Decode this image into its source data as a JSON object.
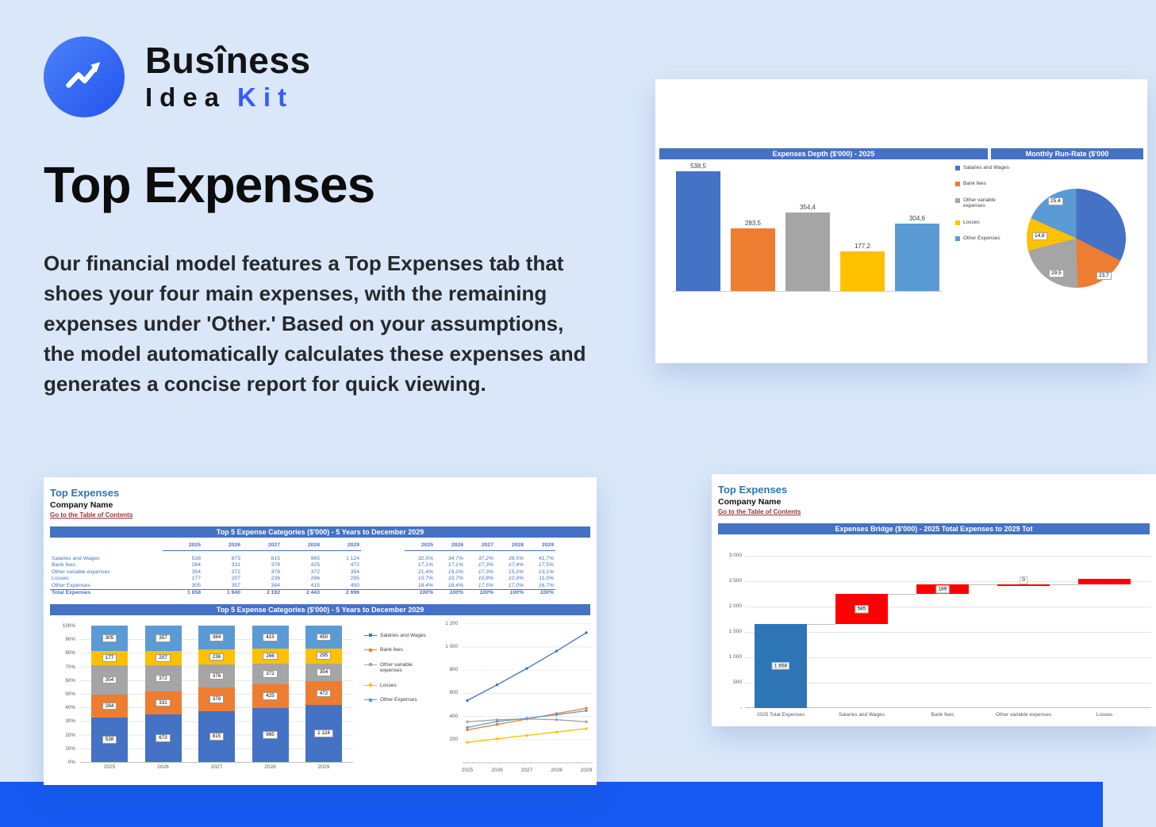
{
  "page": {
    "background": "#d9e7f9",
    "band_color": "#1659f0"
  },
  "logo": {
    "name": "Busîness",
    "sub_word": "Idea",
    "sub_accent": "Kit"
  },
  "hero": {
    "title": "Top Expenses",
    "paragraph": "Our financial model features a Top Expenses tab that shoes your four main expenses, with the remaining expenses under 'Other.' Based on your assumptions, the model automatically calculates these expenses and generates a concise report for quick viewing."
  },
  "colors": {
    "excel_header": "#4472c4",
    "series_palette": [
      "#4472c4",
      "#ed7d31",
      "#a5a5a5",
      "#ffc000",
      "#5b9bd5"
    ],
    "waterfall_total": "#2e75b6",
    "waterfall_delta": "#ff0000",
    "sheet_title_blue": "#2e75b6",
    "toc_link_red": "#943634",
    "table_text_blue": "#4472c4"
  },
  "categories": [
    "Salaries and Wages",
    "Bank fees",
    "Other variable expenses",
    "Losses",
    "Other Expenses"
  ],
  "sheet1": {
    "title": "Top Expenses",
    "company": "Company Name",
    "toc_link": "Go to the Table of Contents",
    "table_header": "Top 5 Expense Categories ($'000) - 5 Years to December 2029",
    "years": [
      "2025",
      "2026",
      "2027",
      "2028",
      "2029"
    ],
    "rows": [
      {
        "label": "Salaries and Wages",
        "values": [
          "538",
          "673",
          "815",
          "965",
          "1 124"
        ],
        "pcts": [
          "32,5%",
          "34,7%",
          "37,2%",
          "39,5%",
          "41,7%"
        ]
      },
      {
        "label": "Bank fees",
        "values": [
          "284",
          "331",
          "378",
          "425",
          "472"
        ],
        "pcts": [
          "17,1%",
          "17,1%",
          "17,3%",
          "17,4%",
          "17,5%"
        ]
      },
      {
        "label": "Other variable expenses",
        "values": [
          "354",
          "372",
          "378",
          "372",
          "354"
        ],
        "pcts": [
          "21,4%",
          "19,2%",
          "17,3%",
          "15,2%",
          "13,1%"
        ]
      },
      {
        "label": "Losses",
        "values": [
          "177",
          "207",
          "236",
          "266",
          "295"
        ],
        "pcts": [
          "10,7%",
          "10,7%",
          "10,8%",
          "10,9%",
          "11,0%"
        ]
      },
      {
        "label": "Other Expenses",
        "values": [
          "305",
          "357",
          "384",
          "415",
          "450"
        ],
        "pcts": [
          "18,4%",
          "18,4%",
          "17,5%",
          "17,0%",
          "16,7%"
        ]
      }
    ],
    "total_row": {
      "label": "Total Expenses",
      "values": [
        "1 658",
        "1 940",
        "2 192",
        "2 443",
        "2 696"
      ],
      "pcts": [
        "100%",
        "100%",
        "100%",
        "100%",
        "100%"
      ]
    }
  },
  "sheet2": {
    "title": "Top Expenses",
    "company": "Company Name",
    "toc_link": "Go to the Table of Contents"
  },
  "chart_data": [
    {
      "id": "expenses_depth",
      "type": "bar",
      "title": "Expenses Depth ($'000) - 2025",
      "categories": [
        "Salaries and Wages",
        "Bank fees",
        "Other variable expenses",
        "Losses",
        "Other Expenses"
      ],
      "values": [
        538.5,
        283.5,
        354.4,
        177.2,
        304.6
      ],
      "value_labels": [
        "538,5",
        "283,5",
        "354,4",
        "177,2",
        "304,6"
      ],
      "legend_position": "right"
    },
    {
      "id": "monthly_run_rate",
      "type": "pie",
      "title": "Monthly Run-Rate ($'000",
      "categories": [
        "Salaries and Wages",
        "Bank fees",
        "Other variable expenses",
        "Losses",
        "Other Expenses"
      ],
      "values": [
        44.9,
        23.7,
        29.5,
        14.8,
        25.4
      ],
      "visible_labels": [
        "25,4",
        "14,8",
        "29,5",
        "23,7"
      ]
    },
    {
      "id": "top5_stacked",
      "type": "bar",
      "subtype": "stacked-100",
      "title": "Top 5 Expense Categories ($'000) - 5 Years to December 2029",
      "categories": [
        "2025",
        "2026",
        "2027",
        "2028",
        "2029"
      ],
      "series": [
        {
          "name": "Salaries and Wages",
          "values": [
            538,
            673,
            815,
            965,
            1124
          ]
        },
        {
          "name": "Bank fees",
          "values": [
            284,
            331,
            378,
            425,
            472
          ]
        },
        {
          "name": "Other variable expenses",
          "values": [
            354,
            372,
            378,
            372,
            354
          ]
        },
        {
          "name": "Losses",
          "values": [
            177,
            207,
            236,
            266,
            295
          ]
        },
        {
          "name": "Other Expenses",
          "values": [
            305,
            357,
            384,
            415,
            450
          ]
        }
      ],
      "y_ticks": [
        "100%",
        "90%",
        "80%",
        "70%",
        "60%",
        "50%",
        "40%",
        "30%",
        "20%",
        "10%",
        "0%"
      ]
    },
    {
      "id": "top5_lines",
      "type": "line",
      "x": [
        "2025",
        "2026",
        "2027",
        "2028",
        "2029"
      ],
      "series": [
        {
          "name": "Salaries and Wages",
          "values": [
            538,
            673,
            815,
            965,
            1124
          ]
        },
        {
          "name": "Bank fees",
          "values": [
            284,
            331,
            378,
            425,
            472
          ]
        },
        {
          "name": "Other variable expenses",
          "values": [
            354,
            372,
            378,
            372,
            354
          ]
        },
        {
          "name": "Losses",
          "values": [
            177,
            207,
            236,
            266,
            295
          ]
        },
        {
          "name": "Other Expenses",
          "values": [
            305,
            357,
            384,
            415,
            450
          ]
        }
      ],
      "y_ticks": [
        "1 200",
        "1 000",
        "800",
        "600",
        "400",
        "200"
      ],
      "y_tick_values": [
        1200,
        1000,
        800,
        600,
        400,
        200
      ],
      "ylim": [
        0,
        1200
      ]
    },
    {
      "id": "expenses_bridge",
      "type": "waterfall",
      "title": "Expenses Bridge ($'000) - 2025 Total Expenses to 2029 Tot",
      "y_ticks": [
        "3 000",
        "2 500",
        "2 000",
        "1 500",
        "1 000",
        "500",
        "-"
      ],
      "y_tick_values": [
        3000,
        2500,
        2000,
        1500,
        1000,
        500,
        0
      ],
      "ylim": [
        0,
        3000
      ],
      "steps": [
        {
          "label": "2025 Total Expenses",
          "start": 0,
          "end": 1658,
          "bar": "total",
          "value_label": "1 658"
        },
        {
          "label": "Salaries and Wages",
          "start": 1658,
          "end": 2243,
          "bar": "delta",
          "value_label": "585"
        },
        {
          "label": "Bank fees",
          "start": 2243,
          "end": 2432,
          "bar": "delta",
          "value_label": "189"
        },
        {
          "label": "Other variable expenses",
          "start": 2432,
          "end": 2432,
          "bar": "delta",
          "value_label": "0"
        },
        {
          "label": "Losses",
          "start": 2432,
          "end": 2550,
          "bar": "delta",
          "value_label": ""
        }
      ]
    }
  ]
}
